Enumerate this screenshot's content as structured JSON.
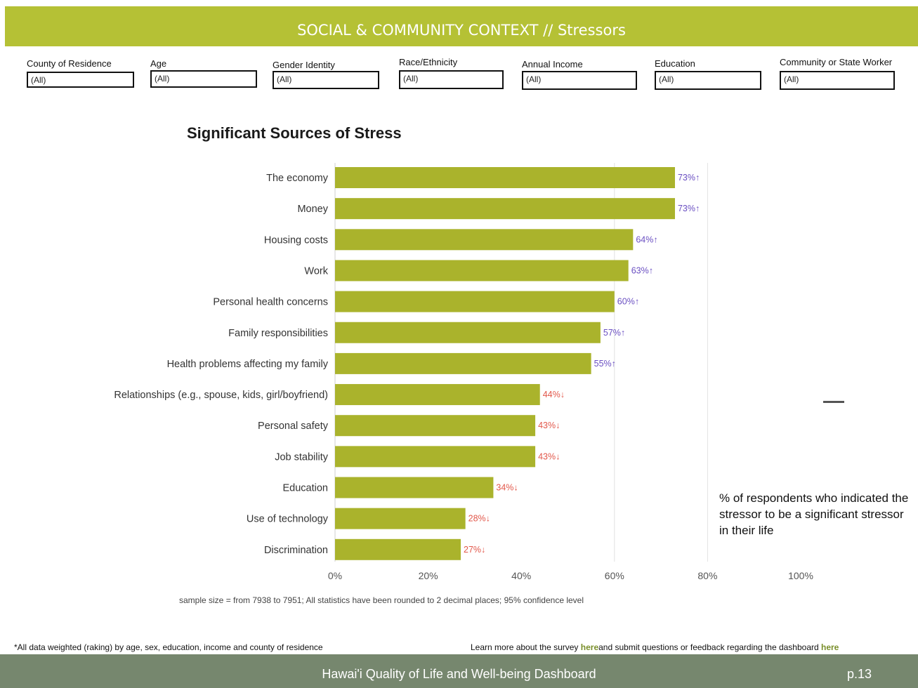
{
  "header": {
    "title": "SOCIAL & COMMUNITY CONTEXT // Stressors"
  },
  "filters": [
    {
      "label": "County of Residence",
      "value": "(All)"
    },
    {
      "label": "Age",
      "value": "(All)"
    },
    {
      "label": "Gender Identity",
      "value": "(All)"
    },
    {
      "label": "Race/Ethnicity",
      "value": "(All)"
    },
    {
      "label": "Annual Income",
      "value": "(All)"
    },
    {
      "label": "Education",
      "value": "(All)"
    },
    {
      "label": "Community or State Worker",
      "value": "(All)"
    }
  ],
  "chart_title": "Significant Sources of Stress",
  "chart_data": {
    "type": "bar",
    "orientation": "horizontal",
    "title": "Significant Sources of Stress",
    "categories": [
      "The economy",
      "Money",
      "Housing costs",
      "Work",
      "Personal health concerns",
      "Family responsibilities",
      "Health problems affecting my family",
      "Relationships (e.g., spouse, kids, girl/boyfriend)",
      "Personal safety",
      "Job stability",
      "Education",
      "Use of technology",
      "Discrimination"
    ],
    "values": [
      73,
      73,
      64,
      63,
      60,
      57,
      55,
      44,
      43,
      43,
      34,
      28,
      27
    ],
    "labels": [
      "73%↑",
      "73%↑",
      "64%↑",
      "63%↑",
      "60%↑",
      "57%↑",
      "55%↑",
      "44%↓",
      "43%↓",
      "43%↓",
      "34%↓",
      "28%↓",
      "27%↓"
    ],
    "directions": [
      "up",
      "up",
      "up",
      "up",
      "up",
      "up",
      "up",
      "down",
      "down",
      "down",
      "down",
      "down",
      "down"
    ],
    "xlim": [
      0,
      100
    ],
    "xticks": [
      "0%",
      "20%",
      "40%",
      "60%",
      "80%",
      "100%"
    ],
    "grid": true,
    "colors": {
      "bar": "#aab32c",
      "up": "#6a4fc2",
      "down": "#e2574a"
    }
  },
  "legend_note": "% of respondents who indicated the stressor to be a significant stressor in their life",
  "sample_note": "sample size = from 7938 to 7951; All statistics have been rounded to 2 decimal places; 95% confidence level",
  "footnote": "*All data weighted (raking) by age, sex, education, income and county of residence",
  "learn": {
    "prefix": "Learn more about the survey ",
    "link1": "here",
    "middle": "and submit questions or feedback regarding the dashboard ",
    "link2": "here"
  },
  "footer": {
    "title": "Hawai'i Quality of Life and Well-being Dashboard",
    "page": "p.13"
  }
}
